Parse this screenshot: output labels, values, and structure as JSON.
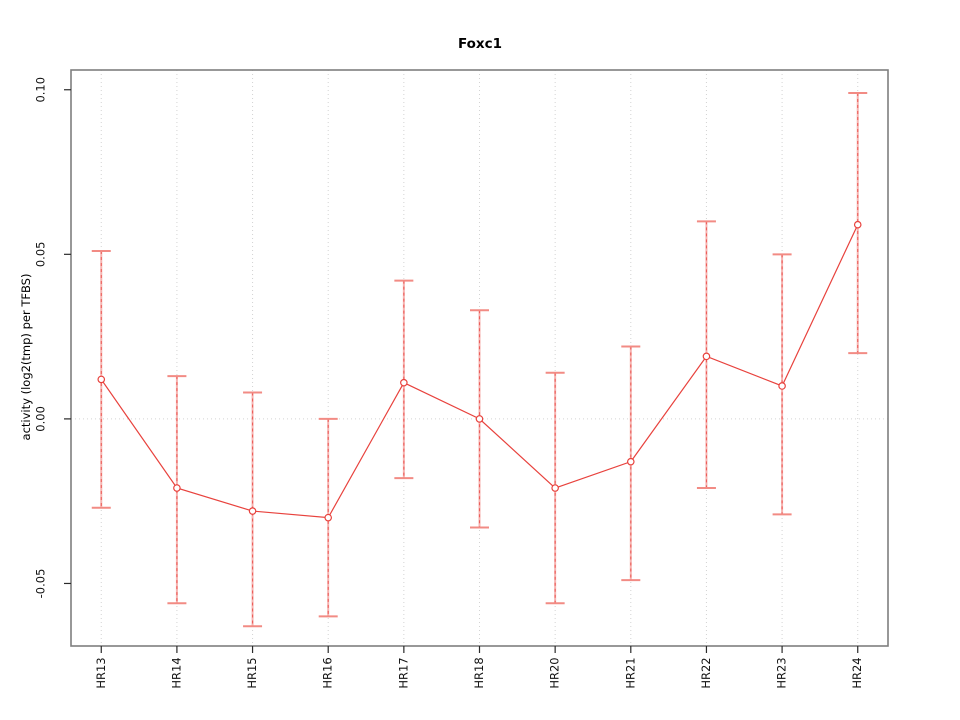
{
  "chart_data": {
    "type": "line",
    "title": "Foxc1",
    "xlabel": "",
    "ylabel": "activity (log2(tmp) per TFBS)",
    "categories": [
      "HR13",
      "HR14",
      "HR15",
      "HR16",
      "HR17",
      "HR18",
      "HR20",
      "HR21",
      "HR22",
      "HR23",
      "HR24"
    ],
    "series": [
      {
        "name": "activity",
        "values": [
          0.012,
          -0.021,
          -0.028,
          -0.03,
          0.011,
          0.0,
          -0.021,
          -0.013,
          0.019,
          0.01,
          0.059
        ],
        "upper": [
          0.051,
          0.013,
          0.008,
          0.0,
          0.042,
          0.033,
          0.014,
          0.022,
          0.06,
          0.05,
          0.099
        ],
        "lower": [
          -0.027,
          -0.056,
          -0.063,
          -0.06,
          -0.018,
          -0.033,
          -0.056,
          -0.049,
          -0.021,
          -0.029,
          0.02
        ]
      }
    ],
    "ylim": [
      -0.069,
      0.106
    ],
    "yticks": [
      -0.05,
      0.0,
      0.05,
      0.1
    ],
    "ytick_labels": [
      "-0.05",
      "0.00",
      "0.05",
      "0.10"
    ],
    "grid": {
      "vertical": "dotted line at every category",
      "horizontal": "dotted line at y=0 only"
    },
    "legend": "none",
    "marker": "open-circle",
    "colors": {
      "series": "#e8423d",
      "error_bar_underlay": "#f6b3b0",
      "error_bar_cap": "#f28b84",
      "grid": "#d3d3d3",
      "box": "#7f7f7f",
      "tick": "#2a2a2a",
      "text": "#111111",
      "background": "#ffffff"
    }
  }
}
